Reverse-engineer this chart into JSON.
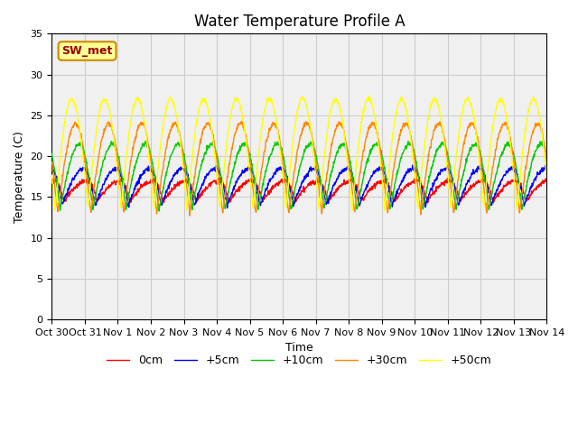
{
  "title": "Water Temperature Profile A",
  "xlabel": "Time",
  "ylabel": "Temperature (C)",
  "ylim": [
    0,
    35
  ],
  "x_tick_labels": [
    "Oct 30",
    "Oct 31",
    "Nov 1",
    "Nov 2",
    "Nov 3",
    "Nov 4",
    "Nov 5",
    "Nov 6",
    "Nov 7",
    "Nov 8",
    "Nov 9",
    "Nov 10",
    "Nov 11",
    "Nov 12",
    "Nov 13",
    "Nov 14"
  ],
  "legend_entries": [
    "0cm",
    "+5cm",
    "+10cm",
    "+30cm",
    "+50cm"
  ],
  "line_colors": [
    "#ff0000",
    "#0000ff",
    "#00cc00",
    "#ff8800",
    "#ffff00"
  ],
  "annotation_text": "SW_met",
  "annotation_bg": "#ffff99",
  "annotation_border": "#cc8800",
  "grid_color": "#cccccc",
  "bg_color": "#e8e8e8",
  "inner_bg_color": "#f0f0f0",
  "title_fontsize": 12,
  "label_fontsize": 9,
  "tick_fontsize": 8,
  "n_days": 15,
  "pts_per_day": 96,
  "series": [
    {
      "key": "0cm",
      "mean": 14.5,
      "amp": 2.5,
      "phase": 0.38,
      "skew": 0.7
    },
    {
      "key": "+5cm",
      "mean": 14.0,
      "amp": 4.5,
      "phase": 0.32,
      "skew": 0.65
    },
    {
      "key": "+10cm",
      "mean": 13.5,
      "amp": 8.0,
      "phase": 0.25,
      "skew": 0.6
    },
    {
      "key": "+30cm",
      "mean": 13.0,
      "amp": 11.0,
      "phase": 0.18,
      "skew": 0.55
    },
    {
      "key": "+50cm",
      "mean": 13.5,
      "amp": 13.5,
      "phase": 0.1,
      "skew": 0.5
    }
  ]
}
